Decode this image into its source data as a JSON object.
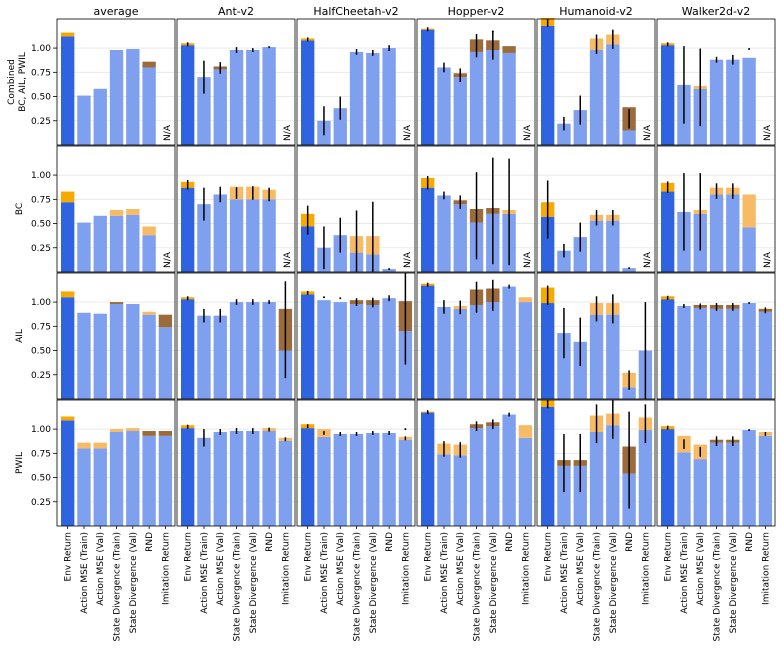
{
  "chart_data": {
    "type": "bar",
    "columns": [
      "average",
      "Ant-v2",
      "HalfCheetah-v2",
      "Hopper-v2",
      "Humanoid-v2",
      "Walker2d-v2"
    ],
    "rows": [
      "Combined\nBC, AIL, PWIL",
      "BC",
      "AIL",
      "PWIL"
    ],
    "categories": [
      "Env Return",
      "Action MSE (Train)",
      "Action MSE (Val)",
      "State Divergence (Train)",
      "State Divergence (Val)",
      "RND",
      "Imitation Return"
    ],
    "y_ticks": [
      "0.25",
      "0.50",
      "0.75",
      "1.00"
    ],
    "ylim": [
      0,
      1.3
    ],
    "na_label": "N/A",
    "colors": {
      "env_return": "#2f63e0",
      "metric": "#7f9fef",
      "positive_gap": "#f8a900",
      "light_positive_gap": "#f7bb66",
      "negative_gap": "#9b6b3c"
    },
    "panels": [
      [
        {
          "values": [
            1.12,
            0.51,
            0.58,
            0.98,
            0.99,
            0.8,
            null
          ],
          "extras": [
            0.04,
            0,
            0,
            0,
            0,
            -0.06,
            null
          ],
          "extra_colors": [
            "positive_gap",
            "",
            "",
            "",
            "",
            "negative_gap",
            ""
          ],
          "errors": [
            0,
            0,
            0,
            0,
            0,
            0,
            null
          ]
        },
        {
          "values": [
            1.03,
            0.7,
            0.78,
            0.98,
            0.98,
            1.01,
            null
          ],
          "extras": [
            0.02,
            0,
            0.03,
            0,
            0,
            0,
            null
          ],
          "extra_colors": [
            "positive_gap",
            "",
            "negative_gap",
            "",
            "",
            "",
            ""
          ],
          "errors": [
            0.02,
            0.17,
            0.06,
            0.03,
            0.02,
            0.01,
            null
          ]
        },
        {
          "values": [
            1.08,
            0.25,
            0.38,
            0.96,
            0.95,
            1.0,
            null
          ],
          "extras": [
            0.02,
            0,
            0,
            0,
            0,
            0,
            null
          ],
          "extra_colors": [
            "positive_gap",
            "",
            "",
            "",
            "",
            "",
            ""
          ],
          "errors": [
            0.02,
            0.15,
            0.12,
            0.03,
            0.03,
            0.03,
            null
          ]
        },
        {
          "values": [
            1.19,
            0.8,
            0.7,
            0.96,
            0.98,
            0.95,
            null
          ],
          "extras": [
            0.01,
            0,
            0.04,
            0.13,
            0.1,
            0.07,
            null
          ],
          "extra_colors": [
            "positive_gap",
            "",
            "negative_gap",
            "negative_gap",
            "negative_gap",
            "negative_gap",
            ""
          ],
          "errors": [
            0.02,
            0.05,
            0.07,
            0.12,
            0.15,
            0,
            null
          ],
          "dots": [
            null,
            null,
            null,
            null,
            1.17,
            null,
            null
          ]
        },
        {
          "values": [
            1.23,
            0.22,
            0.36,
            0.98,
            1.04,
            0.15,
            null
          ],
          "extras": [
            0.08,
            0,
            0,
            0.12,
            0.1,
            0.24,
            null
          ],
          "extra_colors": [
            "positive_gap",
            "",
            "",
            "light_positive_gap",
            "light_positive_gap",
            "negative_gap",
            ""
          ],
          "errors": [
            0.05,
            0.07,
            0.15,
            0.1,
            0.1,
            0.1,
            null
          ]
        },
        {
          "values": [
            1.03,
            0.62,
            0.58,
            0.88,
            0.88,
            0.9,
            null
          ],
          "extras": [
            0.02,
            0,
            0.03,
            0,
            0,
            0,
            null
          ],
          "extra_colors": [
            "positive_gap",
            "",
            "light_positive_gap",
            "",
            "",
            "",
            ""
          ],
          "errors": [
            0.02,
            0.4,
            0.4,
            0.03,
            0.05,
            0,
            null
          ],
          "dots": [
            null,
            null,
            null,
            null,
            null,
            0.99,
            null
          ]
        }
      ],
      [
        {
          "values": [
            0.72,
            0.51,
            0.58,
            0.58,
            0.59,
            0.38,
            null
          ],
          "extras": [
            0.11,
            0,
            0,
            0.06,
            0.06,
            0.09,
            null
          ],
          "extra_colors": [
            "positive_gap",
            "",
            "",
            "light_positive_gap",
            "light_positive_gap",
            "light_positive_gap",
            ""
          ],
          "errors": [
            0,
            0,
            0,
            0,
            0,
            0,
            null
          ]
        },
        {
          "values": [
            0.87,
            0.7,
            0.8,
            0.75,
            0.75,
            0.75,
            null
          ],
          "extras": [
            0.06,
            0,
            0,
            0.13,
            0.13,
            0.1,
            null
          ],
          "extra_colors": [
            "positive_gap",
            "",
            "",
            "light_positive_gap",
            "light_positive_gap",
            "light_positive_gap",
            ""
          ],
          "errors": [
            0.05,
            0.17,
            0.08,
            0.06,
            0.07,
            0.07,
            null
          ]
        },
        {
          "values": [
            0.47,
            0.25,
            0.38,
            0.2,
            0.18,
            0.03,
            null
          ],
          "extras": [
            0.13,
            0,
            0,
            0.17,
            0.19,
            0,
            null
          ],
          "extra_colors": [
            "positive_gap",
            "",
            "",
            "light_positive_gap",
            "light_positive_gap",
            "",
            ""
          ],
          "errors": [
            0.15,
            0.22,
            0.18,
            0.35,
            0.45,
            0.01,
            null
          ]
        },
        {
          "values": [
            0.87,
            0.79,
            0.7,
            0.51,
            0.6,
            0.6,
            null
          ],
          "extras": [
            0.1,
            0,
            0.04,
            0.14,
            0.06,
            0.04,
            null
          ],
          "extra_colors": [
            "positive_gap",
            "",
            "negative_gap",
            "negative_gap",
            "negative_gap",
            "light_positive_gap",
            ""
          ],
          "errors": [
            0.07,
            0.04,
            0.07,
            0.45,
            0.55,
            0.55,
            null
          ]
        },
        {
          "values": [
            0.57,
            0.22,
            0.36,
            0.53,
            0.53,
            0.04,
            null
          ],
          "extras": [
            0.15,
            0,
            0,
            0.06,
            0.06,
            0,
            null
          ],
          "extra_colors": [
            "positive_gap",
            "",
            "",
            "light_positive_gap",
            "light_positive_gap",
            "",
            ""
          ],
          "errors": [
            0.3,
            0.07,
            0.15,
            0.08,
            0.08,
            0.01,
            null
          ]
        },
        {
          "values": [
            0.83,
            0.62,
            0.6,
            0.8,
            0.8,
            0.46,
            null
          ],
          "extras": [
            0.09,
            0,
            0.04,
            0.07,
            0.07,
            0.34,
            null
          ],
          "extra_colors": [
            "positive_gap",
            "",
            "light_positive_gap",
            "light_positive_gap",
            "light_positive_gap",
            "light_positive_gap",
            ""
          ],
          "errors": [
            0.06,
            0.4,
            0.4,
            0.08,
            0.08,
            0,
            null
          ]
        }
      ],
      [
        {
          "values": [
            1.05,
            0.89,
            0.88,
            0.98,
            0.98,
            0.87,
            0.74
          ],
          "extras": [
            0.06,
            0,
            0,
            0.02,
            0,
            0.03,
            0.13
          ],
          "extra_colors": [
            "positive_gap",
            "",
            "",
            "negative_gap",
            "",
            "light_positive_gap",
            "negative_gap"
          ],
          "errors": [
            0,
            0,
            0,
            0,
            0,
            0,
            0
          ]
        },
        {
          "values": [
            1.03,
            0.86,
            0.86,
            1.0,
            1.0,
            1.0,
            0.5
          ],
          "extras": [
            0.02,
            0,
            0,
            0,
            0,
            0,
            0.43
          ],
          "extra_colors": [
            "positive_gap",
            "",
            "",
            "",
            "",
            "",
            "negative_gap"
          ],
          "errors": [
            0.02,
            0.07,
            0.07,
            0.03,
            0.03,
            0.02,
            0.5
          ]
        },
        {
          "values": [
            1.08,
            1.02,
            1.0,
            0.98,
            0.97,
            1.04,
            0.7
          ],
          "extras": [
            0.03,
            0,
            0,
            0.04,
            0.05,
            0,
            0.31
          ],
          "extra_colors": [
            "positive_gap",
            "",
            "",
            "negative_gap",
            "negative_gap",
            "",
            "negative_gap"
          ],
          "errors": [
            0.02,
            0,
            0,
            0.04,
            0.05,
            0.03,
            0.5
          ],
          "dots": [
            null,
            1.05,
            1.04,
            null,
            null,
            null,
            null
          ]
        },
        {
          "values": [
            1.17,
            0.95,
            0.93,
            0.97,
            1.0,
            1.16,
            1.0
          ],
          "extras": [
            0.02,
            0,
            0.03,
            0.16,
            0.14,
            0,
            0.05
          ],
          "extra_colors": [
            "positive_gap",
            "",
            "light_positive_gap",
            "negative_gap",
            "negative_gap",
            "",
            "light_positive_gap"
          ],
          "errors": [
            0.02,
            0.07,
            0.07,
            0.16,
            0.16,
            0.02,
            0
          ]
        },
        {
          "values": [
            0.99,
            0.68,
            0.59,
            0.87,
            0.87,
            0.12,
            0.5
          ],
          "extras": [
            0.16,
            0,
            0,
            0.12,
            0.12,
            0.15,
            0
          ],
          "extra_colors": [
            "positive_gap",
            "",
            "",
            "light_positive_gap",
            "light_positive_gap",
            "light_positive_gap",
            ""
          ],
          "errors": [
            0.1,
            0.26,
            0.25,
            0.13,
            0.15,
            0.1,
            0.5
          ]
        },
        {
          "values": [
            1.03,
            0.96,
            0.94,
            0.93,
            0.93,
            0.99,
            0.9
          ],
          "extras": [
            0.03,
            0,
            0.03,
            0.04,
            0.04,
            0,
            0.03
          ],
          "extra_colors": [
            "positive_gap",
            "",
            "negative_gap",
            "negative_gap",
            "negative_gap",
            "",
            "negative_gap"
          ],
          "errors": [
            0.02,
            0.02,
            0.03,
            0.04,
            0.04,
            0.01,
            0.03
          ]
        }
      ],
      [
        {
          "values": [
            1.09,
            0.8,
            0.8,
            0.97,
            0.98,
            0.93,
            0.93
          ],
          "extras": [
            0.04,
            0.06,
            0.06,
            0.03,
            0.03,
            0.05,
            0.05
          ],
          "extra_colors": [
            "positive_gap",
            "light_positive_gap",
            "light_positive_gap",
            "light_positive_gap",
            "light_positive_gap",
            "negative_gap",
            "negative_gap"
          ],
          "errors": [
            0,
            0,
            0,
            0,
            0,
            0,
            0
          ]
        },
        {
          "values": [
            1.01,
            0.91,
            0.97,
            0.98,
            0.98,
            0.98,
            0.88
          ],
          "extras": [
            0.03,
            0,
            0,
            0,
            0,
            0.03,
            0.03
          ],
          "extra_colors": [
            "positive_gap",
            "",
            "",
            "",
            "",
            "light_positive_gap",
            "light_positive_gap"
          ],
          "errors": [
            0.02,
            0.09,
            0.03,
            0.03,
            0.03,
            0.02,
            0.02
          ]
        },
        {
          "values": [
            1.01,
            0.92,
            0.95,
            0.95,
            0.96,
            0.96,
            0.89
          ],
          "extras": [
            0.04,
            0.08,
            0,
            0,
            0,
            0,
            0.03
          ],
          "extra_colors": [
            "positive_gap",
            "light_positive_gap",
            "",
            "",
            "",
            "",
            "light_positive_gap"
          ],
          "errors": [
            0.02,
            0.02,
            0.02,
            0.02,
            0.02,
            0.02,
            0.02
          ],
          "dots": [
            null,
            null,
            null,
            null,
            null,
            null,
            1.0
          ]
        },
        {
          "values": [
            1.17,
            0.74,
            0.73,
            1.01,
            1.03,
            1.15,
            0.91
          ],
          "extras": [
            0.01,
            0.11,
            0.11,
            0.04,
            0.04,
            0,
            0.13
          ],
          "extra_colors": [
            "positive_gap",
            "light_positive_gap",
            "light_positive_gap",
            "negative_gap",
            "negative_gap",
            "",
            "light_positive_gap"
          ],
          "errors": [
            0.02,
            0.08,
            0.08,
            0.05,
            0.05,
            0.02,
            0
          ]
        },
        {
          "values": [
            1.23,
            0.62,
            0.62,
            0.97,
            1.04,
            0.54,
            0.99
          ],
          "extras": [
            0.07,
            0.06,
            0.06,
            0.17,
            0.12,
            0.28,
            0.13
          ],
          "extra_colors": [
            "positive_gap",
            "negative_gap",
            "negative_gap",
            "light_positive_gap",
            "light_positive_gap",
            "negative_gap",
            "light_positive_gap"
          ],
          "errors": [
            0.05,
            0.3,
            0.3,
            0.2,
            0.2,
            0.5,
            0.2
          ]
        },
        {
          "values": [
            1.0,
            0.76,
            0.69,
            0.86,
            0.86,
            0.99,
            0.93
          ],
          "extras": [
            0.03,
            0.17,
            0.15,
            0.03,
            0.03,
            0,
            0.04
          ],
          "extra_colors": [
            "positive_gap",
            "light_positive_gap",
            "light_positive_gap",
            "negative_gap",
            "negative_gap",
            "",
            "light_positive_gap"
          ],
          "errors": [
            0.02,
            0.05,
            0.05,
            0.05,
            0.05,
            0.01,
            0.02
          ]
        }
      ]
    ]
  }
}
